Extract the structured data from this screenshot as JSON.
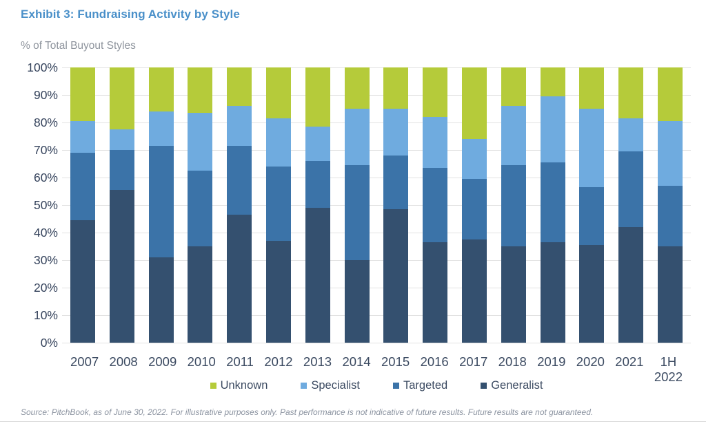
{
  "page": {
    "title": "Exhibit 3: Fundraising Activity by Style",
    "subtitle": "% of Total Buyout Styles",
    "footer": "Source: PitchBook, as of June 30, 2022. For illustrative purposes only. Past performance is not indicative of future results. Future results are not guaranteed."
  },
  "colors": {
    "unknown": "#b5cb3a",
    "specialist": "#6fabdf",
    "targeted": "#3b73a8",
    "generalist": "#34506f",
    "title_blue": "#4a90c9",
    "gridline": "#e2e2e2",
    "axis_text": "#35435c"
  },
  "chart_data": {
    "type": "bar",
    "stacked": true,
    "title": "Exhibit 3: Fundraising Activity by Style",
    "ylabel": "% of Total Buyout Styles",
    "xlabel": "",
    "ylim": [
      0,
      100
    ],
    "yticks": [
      0,
      10,
      20,
      30,
      40,
      50,
      60,
      70,
      80,
      90,
      100
    ],
    "ytick_suffix": "%",
    "grid": true,
    "legend_position": "bottom",
    "legend": [
      "Unknown",
      "Specialist",
      "Targeted",
      "Generalist"
    ],
    "categories": [
      "2007",
      "2008",
      "2009",
      "2010",
      "2011",
      "2012",
      "2013",
      "2014",
      "2015",
      "2016",
      "2017",
      "2018",
      "2019",
      "2020",
      "2021",
      "1H\n2022"
    ],
    "series": [
      {
        "name": "Generalist",
        "color": "#34506f",
        "values": [
          44.5,
          55.5,
          31,
          35,
          46.5,
          37,
          49,
          30,
          48.5,
          36.5,
          37.5,
          35,
          36.5,
          35.5,
          42,
          35
        ]
      },
      {
        "name": "Targeted",
        "color": "#3b73a8",
        "values": [
          24.5,
          14.5,
          40.5,
          27.5,
          25,
          27,
          17,
          34.5,
          19.5,
          27,
          22,
          29.5,
          29,
          21,
          27.5,
          22
        ]
      },
      {
        "name": "Specialist",
        "color": "#6fabdf",
        "values": [
          11.5,
          7.5,
          12.5,
          21,
          14.5,
          17.5,
          12.5,
          20.5,
          17,
          18.5,
          14.5,
          21.5,
          24,
          28.5,
          12,
          23.5
        ]
      },
      {
        "name": "Unknown",
        "color": "#b5cb3a",
        "values": [
          19.5,
          22.5,
          16,
          16.5,
          14,
          18.5,
          21.5,
          15,
          15,
          18,
          26,
          14,
          10.5,
          15,
          18.5,
          19.5
        ]
      }
    ]
  }
}
